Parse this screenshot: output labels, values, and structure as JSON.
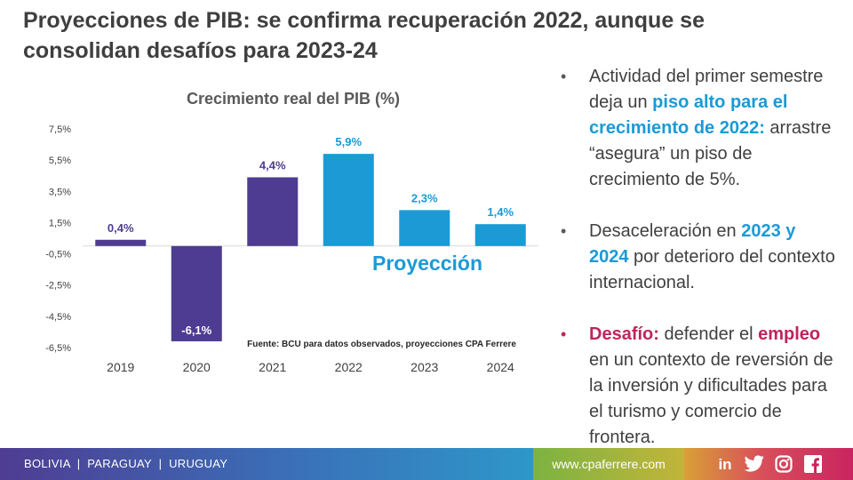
{
  "slide": {
    "title_line1": "Proyecciones de PIB: se confirma recuperación 2022, aunque se",
    "title_line2": "consolidan desafíos para 2023-24"
  },
  "chart_data": {
    "type": "bar",
    "title": "Crecimiento real del PIB (%)",
    "categories": [
      "2019",
      "2020",
      "2021",
      "2022",
      "2023",
      "2024"
    ],
    "values": [
      0.4,
      -6.1,
      4.4,
      5.9,
      2.3,
      1.4
    ],
    "data_labels": [
      "0,4%",
      "-6,1%",
      "4,4%",
      "5,9%",
      "2,3%",
      "1,4%"
    ],
    "bar_colors": [
      "#4e3c92",
      "#4e3c92",
      "#4e3c92",
      "#1b9ad6",
      "#1b9ad6",
      "#1b9ad6"
    ],
    "yticks": [
      7.5,
      5.5,
      3.5,
      1.5,
      -0.5,
      -2.5,
      -4.5,
      -6.5
    ],
    "ytick_labels": [
      "7,5%",
      "5,5%",
      "3,5%",
      "1,5%",
      "-0,5%",
      "-2,5%",
      "-4,5%",
      "-6,5%"
    ],
    "ylim": [
      -6.5,
      7.5
    ],
    "xlabel": "",
    "ylabel": "",
    "grid": false,
    "annotation_projection": "Proyección",
    "source_note": "Fuente: BCU para datos observados, proyecciones CPA Ferrere",
    "colors": {
      "observed": "#4e3c92",
      "projected": "#1b9ad6"
    }
  },
  "bullets": [
    {
      "pre": "Actividad del primer semestre deja un ",
      "highlight": "piso alto para el crecimiento de 2022:",
      "post": " arrastre “asegura” un piso de crecimiento de 5%."
    },
    {
      "pre": "Desaceleración en ",
      "highlight": "2023 y 2024",
      "post": " por deterioro del contexto internacional."
    },
    {
      "highlight1": "Desafío:",
      "mid": " defender el ",
      "highlight2": "empleo",
      "post": " en un contexto de reversión de la inversión y dificultades para el turismo y comercio de frontera."
    }
  ],
  "footer": {
    "countries": "BOLIVIA  |  PARAGUAY  |  URUGUAY",
    "website": "www.cpaferrere.com",
    "social_icons": [
      "linkedin-icon",
      "twitter-icon",
      "instagram-icon",
      "facebook-icon"
    ],
    "social_linkedin_text": "in"
  }
}
